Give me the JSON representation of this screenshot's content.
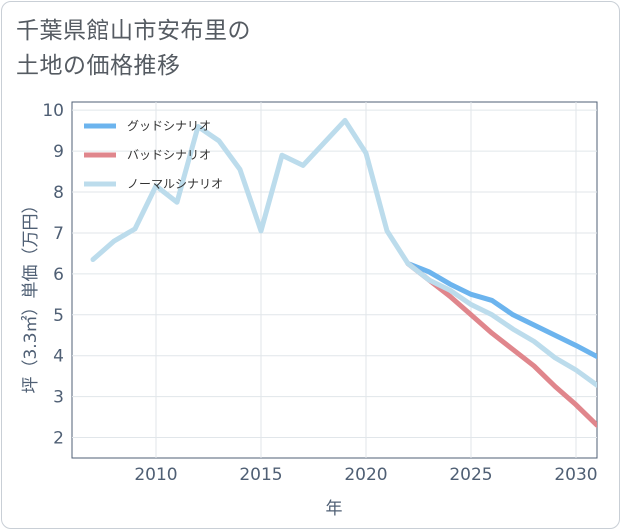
{
  "title": {
    "line1": "千葉県館山市安布里の",
    "line2": "土地の価格推移"
  },
  "chart_data": {
    "type": "line",
    "xlabel": "年",
    "ylabel": "坪（3.3㎡）単価（万円）",
    "xlim": [
      2006,
      2031
    ],
    "ylim": [
      1.5,
      10.2
    ],
    "xticks": [
      2010,
      2015,
      2020,
      2025,
      2030
    ],
    "yticks": [
      2,
      3,
      4,
      5,
      6,
      7,
      8,
      9,
      10
    ],
    "grid": true,
    "legend_position": "top-left",
    "series": [
      {
        "name": "グッドシナリオ",
        "color": "#6cb4ee",
        "x": [
          2022,
          2023,
          2024,
          2025,
          2026,
          2027,
          2028,
          2029,
          2030,
          2031
        ],
        "values": [
          6.25,
          6.05,
          5.75,
          5.5,
          5.35,
          5.0,
          4.75,
          4.5,
          4.25,
          3.98
        ]
      },
      {
        "name": "バッドシナリオ",
        "color": "#e0868c",
        "x": [
          2022,
          2023,
          2024,
          2025,
          2026,
          2027,
          2028,
          2029,
          2030,
          2031
        ],
        "values": [
          6.25,
          5.85,
          5.45,
          5.0,
          4.55,
          4.15,
          3.75,
          3.25,
          2.8,
          2.3
        ]
      },
      {
        "name": "ノーマルシナリオ",
        "color": "#bcdcec",
        "x": [
          2007,
          2008,
          2009,
          2010,
          2011,
          2012,
          2013,
          2014,
          2015,
          2016,
          2017,
          2018,
          2019,
          2020,
          2021,
          2022,
          2023,
          2024,
          2025,
          2026,
          2027,
          2028,
          2029,
          2030,
          2031
        ],
        "values": [
          6.35,
          6.8,
          7.1,
          8.15,
          7.75,
          9.6,
          9.25,
          8.55,
          7.05,
          8.9,
          8.65,
          9.2,
          9.75,
          8.95,
          7.05,
          6.25,
          5.85,
          5.6,
          5.25,
          5.0,
          4.65,
          4.35,
          3.95,
          3.65,
          3.28
        ]
      }
    ]
  }
}
